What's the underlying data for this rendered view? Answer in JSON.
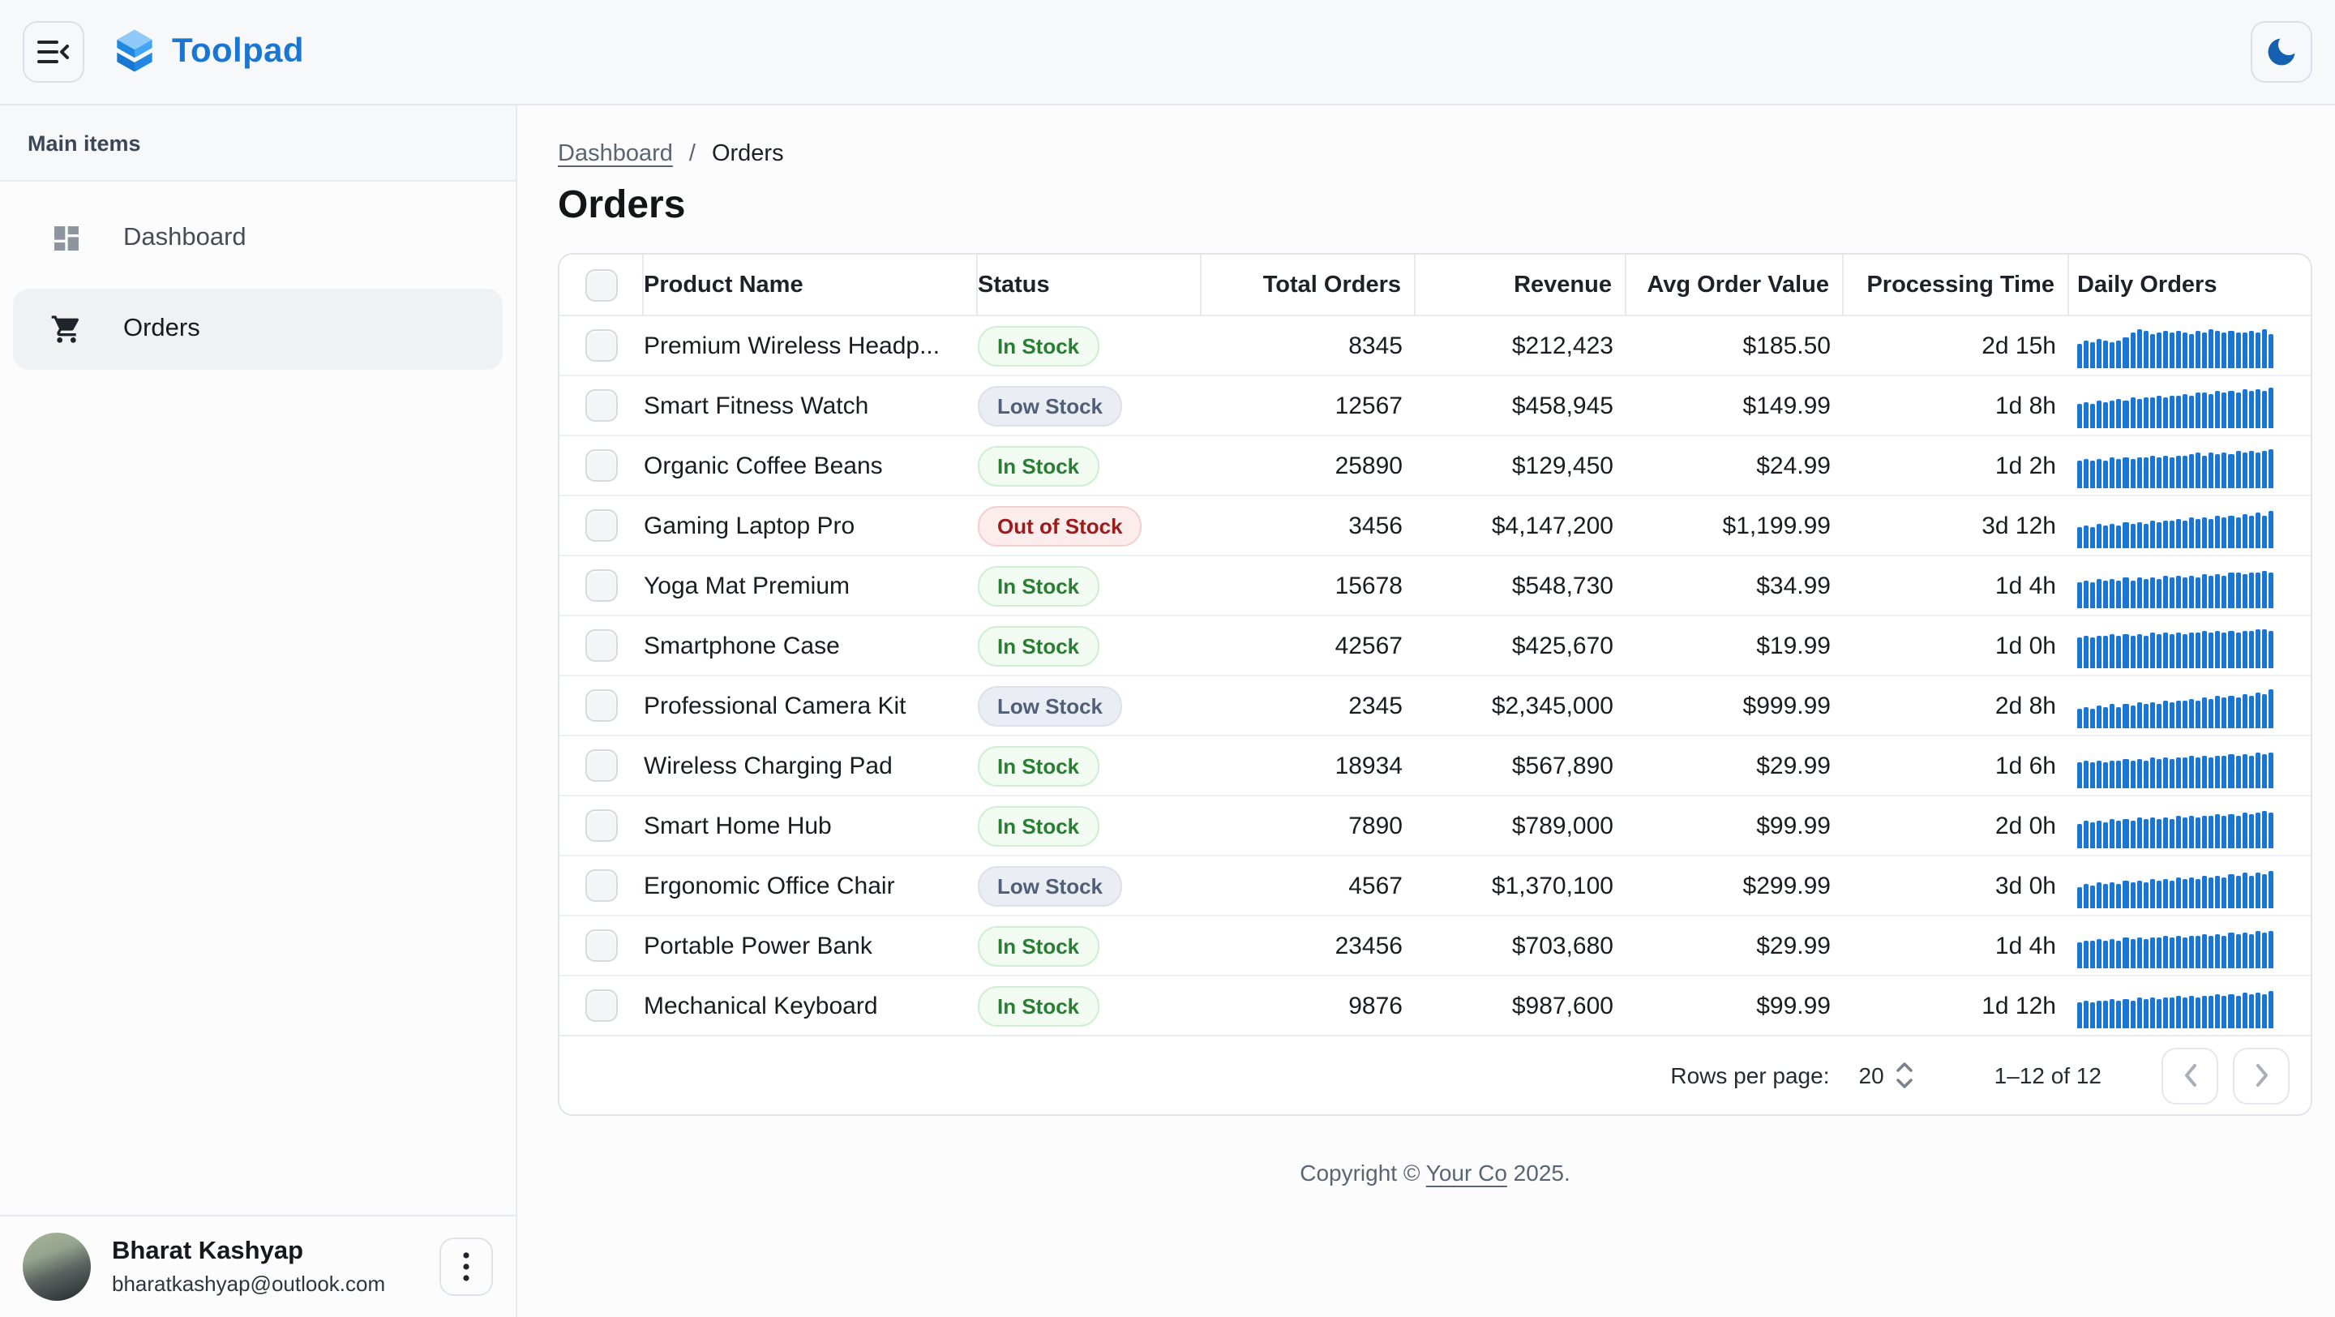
{
  "header": {
    "logo_text": "Toolpad"
  },
  "theme": {
    "mode_icon": "moon-icon"
  },
  "sidebar": {
    "section_label": "Main items",
    "items": [
      {
        "label": "Dashboard",
        "icon": "dashboard-icon",
        "selected": false
      },
      {
        "label": "Orders",
        "icon": "cart-icon",
        "selected": true
      }
    ]
  },
  "user": {
    "name": "Bharat Kashyap",
    "email": "bharatkashyap@outlook.com"
  },
  "breadcrumb": {
    "parent": "Dashboard",
    "separator": "/",
    "current": "Orders"
  },
  "page": {
    "title": "Orders"
  },
  "table": {
    "columns": [
      "Product Name",
      "Status",
      "Total Orders",
      "Revenue",
      "Avg Order Value",
      "Processing Time",
      "Daily Orders"
    ],
    "rows": [
      {
        "product": "Premium Wireless Headp...",
        "status": "In Stock",
        "status_variant": "success",
        "total_orders": "8345",
        "revenue": "$212,423",
        "avg_order_value": "$185.50",
        "processing_time": "2d 15h",
        "daily_orders": [
          55,
          62,
          58,
          65,
          60,
          57,
          63,
          68,
          78,
          88,
          82,
          76,
          80,
          84,
          79,
          83,
          81,
          77,
          84,
          80,
          86,
          82,
          78,
          84,
          81,
          79,
          83,
          80,
          88,
          75
        ]
      },
      {
        "product": "Smart Fitness Watch",
        "status": "Low Stock",
        "status_variant": "neutral",
        "total_orders": "12567",
        "revenue": "$458,945",
        "avg_order_value": "$149.99",
        "processing_time": "1d 8h",
        "daily_orders": [
          52,
          58,
          55,
          60,
          57,
          62,
          65,
          61,
          68,
          64,
          70,
          67,
          72,
          69,
          74,
          71,
          76,
          73,
          78,
          80,
          76,
          82,
          79,
          84,
          81,
          86,
          83,
          88,
          85,
          92
        ]
      },
      {
        "product": "Organic Coffee Beans",
        "status": "In Stock",
        "status_variant": "success",
        "total_orders": "25890",
        "revenue": "$129,450",
        "avg_order_value": "$24.99",
        "processing_time": "1d 2h",
        "daily_orders": [
          60,
          64,
          61,
          66,
          63,
          67,
          64,
          69,
          66,
          70,
          67,
          72,
          69,
          73,
          70,
          74,
          71,
          75,
          78,
          74,
          79,
          76,
          80,
          77,
          82,
          79,
          83,
          80,
          85,
          88
        ]
      },
      {
        "product": "Gaming Laptop Pro",
        "status": "Out of Stock",
        "status_variant": "error",
        "total_orders": "3456",
        "revenue": "$4,147,200",
        "avg_order_value": "$1,199.99",
        "processing_time": "3d 12h",
        "daily_orders": [
          45,
          50,
          47,
          53,
          49,
          55,
          51,
          57,
          53,
          59,
          55,
          61,
          58,
          63,
          60,
          65,
          62,
          67,
          64,
          69,
          66,
          71,
          68,
          73,
          70,
          75,
          72,
          78,
          74,
          82
        ]
      },
      {
        "product": "Yoga Mat Premium",
        "status": "In Stock",
        "status_variant": "success",
        "total_orders": "15678",
        "revenue": "$548,730",
        "avg_order_value": "$34.99",
        "processing_time": "1d 4h",
        "daily_orders": [
          58,
          62,
          59,
          64,
          61,
          65,
          62,
          67,
          63,
          68,
          65,
          69,
          66,
          71,
          67,
          72,
          69,
          73,
          70,
          75,
          72,
          76,
          73,
          78,
          80,
          76,
          81,
          78,
          83,
          80
        ]
      },
      {
        "product": "Smartphone Case",
        "status": "In Stock",
        "status_variant": "success",
        "total_orders": "42567",
        "revenue": "$425,670",
        "avg_order_value": "$19.99",
        "processing_time": "1d 0h",
        "daily_orders": [
          68,
          72,
          69,
          74,
          71,
          75,
          72,
          76,
          73,
          77,
          74,
          78,
          75,
          79,
          76,
          80,
          77,
          81,
          78,
          82,
          79,
          83,
          80,
          84,
          81,
          85,
          82,
          86,
          88,
          84
        ]
      },
      {
        "product": "Professional Camera Kit",
        "status": "Low Stock",
        "status_variant": "neutral",
        "total_orders": "2345",
        "revenue": "$2,345,000",
        "avg_order_value": "$999.99",
        "processing_time": "2d 8h",
        "daily_orders": [
          42,
          47,
          44,
          50,
          46,
          52,
          48,
          54,
          50,
          57,
          53,
          59,
          55,
          61,
          57,
          63,
          60,
          66,
          62,
          68,
          64,
          71,
          67,
          74,
          70,
          77,
          73,
          81,
          77,
          86
        ]
      },
      {
        "product": "Wireless Charging Pad",
        "status": "In Stock",
        "status_variant": "success",
        "total_orders": "18934",
        "revenue": "$567,890",
        "avg_order_value": "$29.99",
        "processing_time": "1d 6h",
        "daily_orders": [
          56,
          60,
          57,
          62,
          59,
          63,
          60,
          65,
          61,
          66,
          63,
          67,
          64,
          69,
          65,
          70,
          67,
          71,
          68,
          73,
          70,
          74,
          71,
          76,
          73,
          77,
          74,
          79,
          76,
          81
        ]
      },
      {
        "product": "Smart Home Hub",
        "status": "In Stock",
        "status_variant": "success",
        "total_orders": "7890",
        "revenue": "$789,000",
        "avg_order_value": "$99.99",
        "processing_time": "2d 0h",
        "daily_orders": [
          55,
          60,
          57,
          63,
          59,
          64,
          61,
          66,
          62,
          67,
          64,
          68,
          65,
          70,
          66,
          71,
          68,
          72,
          69,
          74,
          71,
          75,
          72,
          77,
          74,
          78,
          75,
          80,
          82,
          78
        ]
      },
      {
        "product": "Ergonomic Office Chair",
        "status": "Low Stock",
        "status_variant": "neutral",
        "total_orders": "4567",
        "revenue": "$1,370,100",
        "avg_order_value": "$299.99",
        "processing_time": "3d 0h",
        "daily_orders": [
          48,
          53,
          50,
          56,
          52,
          58,
          54,
          60,
          56,
          62,
          58,
          64,
          60,
          66,
          62,
          68,
          64,
          70,
          66,
          72,
          68,
          74,
          70,
          76,
          72,
          78,
          74,
          80,
          77,
          84
        ]
      },
      {
        "product": "Portable Power Bank",
        "status": "In Stock",
        "status_variant": "success",
        "total_orders": "23456",
        "revenue": "$703,680",
        "avg_order_value": "$29.99",
        "processing_time": "1d 4h",
        "daily_orders": [
          58,
          63,
          60,
          65,
          62,
          66,
          63,
          68,
          64,
          69,
          66,
          70,
          67,
          72,
          68,
          73,
          70,
          74,
          71,
          76,
          72,
          77,
          74,
          78,
          75,
          80,
          76,
          82,
          79,
          83
        ]
      },
      {
        "product": "Mechanical Keyboard",
        "status": "In Stock",
        "status_variant": "success",
        "total_orders": "9876",
        "revenue": "$987,600",
        "avg_order_value": "$99.99",
        "processing_time": "1d 12h",
        "daily_orders": [
          56,
          61,
          58,
          63,
          60,
          64,
          61,
          66,
          63,
          67,
          64,
          69,
          65,
          70,
          67,
          71,
          68,
          73,
          69,
          74,
          71,
          75,
          72,
          77,
          74,
          78,
          75,
          80,
          77,
          82
        ]
      }
    ]
  },
  "pagination": {
    "rows_per_page_label": "Rows per page:",
    "rows_per_page_value": "20",
    "range_label": "1–12 of 12"
  },
  "footer": {
    "prefix": "Copyright © ",
    "company": "Your Co",
    "suffix": " 2025."
  },
  "colors": {
    "accent": "#1976D2",
    "sparkline": "#1976D2",
    "in_stock_text": "#2A7E33",
    "low_stock_text": "#515E77",
    "out_of_stock_text": "#9E1B1B"
  }
}
